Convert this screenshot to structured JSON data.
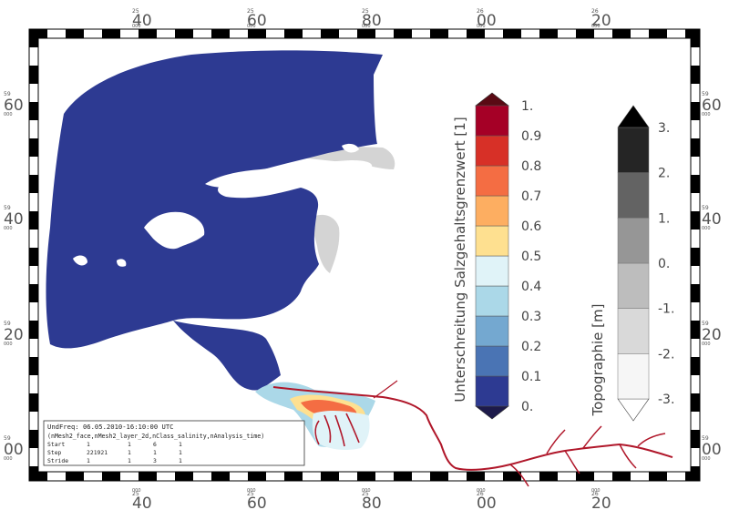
{
  "map": {
    "top_ticks": [
      {
        "sup": "25",
        "main": "40",
        "sub": "000"
      },
      {
        "sup": "25",
        "main": "60",
        "sub": "000"
      },
      {
        "sup": "25",
        "main": "80",
        "sub": "000"
      },
      {
        "sup": "26",
        "main": "00",
        "sub": "000"
      },
      {
        "sup": "26",
        "main": "20",
        "sub": "000"
      }
    ],
    "left_ticks": [
      {
        "sup": "59",
        "main": "60",
        "sub": "000"
      },
      {
        "sup": "59",
        "main": "40",
        "sub": "000"
      },
      {
        "sup": "59",
        "main": "20",
        "sub": "000"
      },
      {
        "sup": "59",
        "main": "00",
        "sub": "000"
      }
    ],
    "colors": {
      "water": "#2d3a92",
      "dry_land": "#d4d4d4",
      "river": "#b0172a"
    }
  },
  "salinity_colorbar": {
    "title": "Unterschreitung Salzgehaltsgrenzwert [1]",
    "labels": [
      "0.",
      "0.1",
      "0.2",
      "0.3",
      "0.4",
      "0.5",
      "0.6",
      "0.7",
      "0.8",
      "0.9",
      "1."
    ],
    "colors": [
      "#2d3a92",
      "#4a74b4",
      "#74a8d0",
      "#abd8e8",
      "#e0f3f8",
      "#fee090",
      "#fdae61",
      "#f46d43",
      "#d73027",
      "#a50026"
    ],
    "under_color": "#1d1a4a",
    "over_color": "#5a0a14"
  },
  "topo_colorbar": {
    "title": "Topographie [m]",
    "labels": [
      "-3.",
      "-2.",
      "-1.",
      "0.",
      "1.",
      "2.",
      "3."
    ],
    "colors": [
      "#f6f6f6",
      "#d9d9d9",
      "#bdbdbd",
      "#969696",
      "#636363",
      "#252525"
    ],
    "under_color": "#ffffff",
    "over_color": "#000000"
  },
  "info_box": {
    "line1": "UndFreq: 06.05.2010-16:10:00 UTC",
    "line2": "(nMesh2_face,nMesh2_layer_2d,nClass_salinity,nAnalysis_time)",
    "rows": [
      [
        "Start",
        "1",
        "1",
        "6",
        "1"
      ],
      [
        "Step",
        "221921",
        "1",
        "1",
        "1"
      ],
      [
        "Stride",
        "1",
        "1",
        "3",
        "1"
      ]
    ]
  }
}
